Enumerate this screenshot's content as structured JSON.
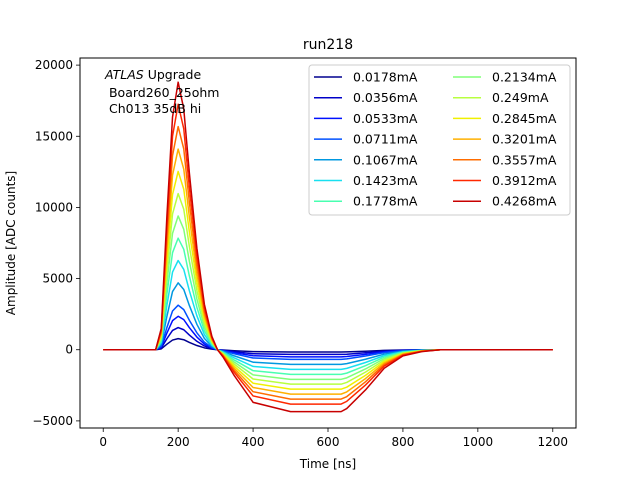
{
  "chart_data": {
    "type": "line",
    "title": "run218",
    "xlabel": "Time [ns]",
    "ylabel": "Amplitude [ADC counts]",
    "xlim": [
      -62,
      1262
    ],
    "ylim": [
      -5500,
      20500
    ],
    "xticks": [
      0,
      200,
      400,
      600,
      800,
      1000,
      1200
    ],
    "yticks": [
      -5000,
      0,
      5000,
      10000,
      15000,
      20000
    ],
    "grid": false,
    "legend_position": "top-right",
    "legend_columns": 2,
    "annotation": {
      "italic": "ATLAS",
      "rest": " Upgrade",
      "line2": " Board260_25ohm",
      "line3": " Ch013 35dB hi"
    },
    "x": [
      0,
      140,
      155,
      170,
      185,
      200,
      215,
      230,
      250,
      270,
      290,
      305,
      320,
      350,
      400,
      500,
      600,
      635,
      650,
      700,
      750,
      800,
      850,
      900,
      1000,
      1100,
      1200
    ],
    "shape": [
      0,
      0,
      0.08,
      0.5,
      0.87,
      1.0,
      0.9,
      0.66,
      0.38,
      0.17,
      0.05,
      0,
      -0.12,
      -0.42,
      -0.85,
      -1.0,
      -1.0,
      -1.0,
      -0.95,
      -0.65,
      -0.3,
      -0.1,
      -0.03,
      0,
      0,
      0,
      0
    ],
    "series": [
      {
        "name": "0.0178mA",
        "color": "#00008f",
        "peak": 780,
        "undershoot": 160
      },
      {
        "name": "0.0356mA",
        "color": "#0000c8",
        "peak": 1560,
        "undershoot": 330
      },
      {
        "name": "0.0533mA",
        "color": "#0010ff",
        "peak": 2350,
        "undershoot": 500
      },
      {
        "name": "0.0711mA",
        "color": "#0050ff",
        "peak": 3130,
        "undershoot": 680
      },
      {
        "name": "0.1067mA",
        "color": "#0098e0",
        "peak": 4700,
        "undershoot": 1030
      },
      {
        "name": "0.1423mA",
        "color": "#18e0f0",
        "peak": 6270,
        "undershoot": 1380
      },
      {
        "name": "0.1778mA",
        "color": "#48ffb0",
        "peak": 7840,
        "undershoot": 1730
      },
      {
        "name": "0.2134mA",
        "color": "#80ff78",
        "peak": 9400,
        "undershoot": 2080
      },
      {
        "name": "0.249mA",
        "color": "#b8ff40",
        "peak": 10970,
        "undershoot": 2420
      },
      {
        "name": "0.2845mA",
        "color": "#f0f000",
        "peak": 12530,
        "undershoot": 2770
      },
      {
        "name": "0.3201mA",
        "color": "#ffb000",
        "peak": 14100,
        "undershoot": 3120
      },
      {
        "name": "0.3557mA",
        "color": "#ff6c00",
        "peak": 15680,
        "undershoot": 3470
      },
      {
        "name": "0.3912mA",
        "color": "#ff2800",
        "peak": 17250,
        "undershoot": 3820
      },
      {
        "name": "0.4268mA",
        "color": "#c80000",
        "peak": 18800,
        "undershoot": 4350
      }
    ]
  }
}
